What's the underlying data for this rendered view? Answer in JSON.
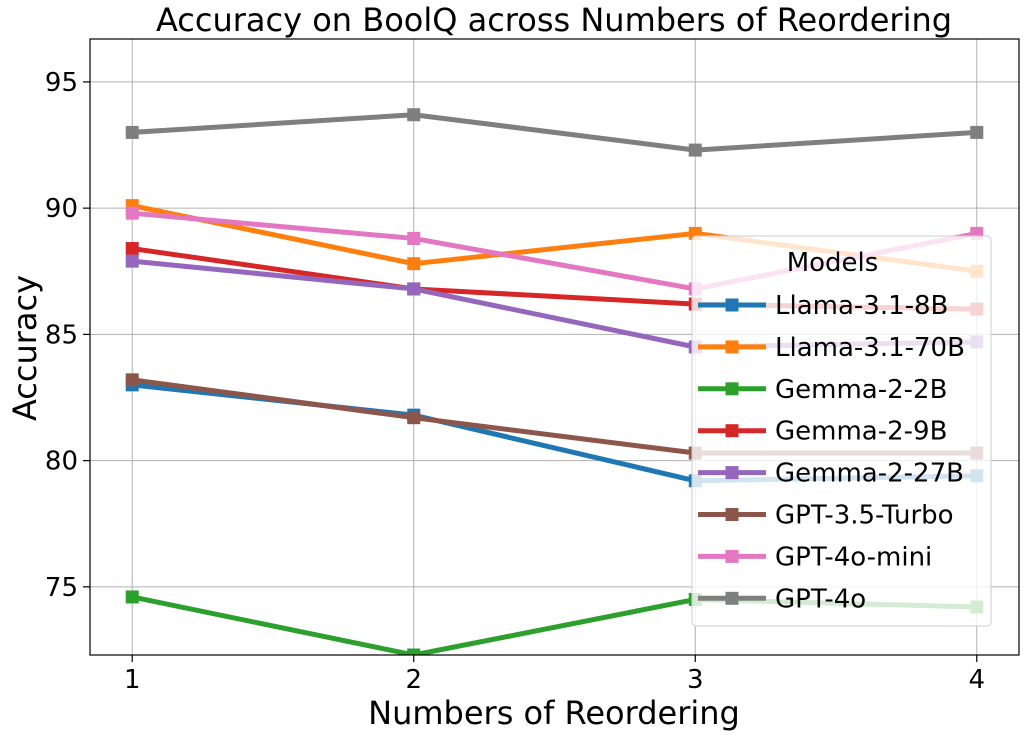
{
  "chart_data": {
    "type": "line",
    "title": "Accuracy on BoolQ across Numbers of Reordering",
    "xlabel": "Numbers of Reordering",
    "ylabel": "Accuracy",
    "x": [
      1,
      2,
      3,
      4
    ],
    "xticks": [
      "1",
      "2",
      "3",
      "4"
    ],
    "yticks": [
      "75",
      "80",
      "85",
      "90",
      "95"
    ],
    "ylim": [
      72.3,
      96.7
    ],
    "grid": true,
    "legend": {
      "title": "Models",
      "placement": "center-right"
    },
    "series": [
      {
        "name": "Llama-3.1-8B",
        "color": "#1f77b4",
        "values": [
          83.0,
          81.8,
          79.2,
          79.4
        ]
      },
      {
        "name": "Llama-3.1-70B",
        "color": "#ff7f0e",
        "values": [
          90.1,
          87.8,
          89.0,
          87.5
        ]
      },
      {
        "name": "Gemma-2-2B",
        "color": "#2ca02c",
        "values": [
          74.6,
          72.3,
          74.5,
          74.2
        ]
      },
      {
        "name": "Gemma-2-9B",
        "color": "#d62728",
        "values": [
          88.4,
          86.8,
          86.2,
          86.0
        ]
      },
      {
        "name": "Gemma-2-27B",
        "color": "#9467bd",
        "values": [
          87.9,
          86.8,
          84.5,
          84.7
        ]
      },
      {
        "name": "GPT-3.5-Turbo",
        "color": "#8c564b",
        "values": [
          83.2,
          81.7,
          80.3,
          80.3
        ]
      },
      {
        "name": "GPT-4o-mini",
        "color": "#e377c2",
        "values": [
          89.8,
          88.8,
          86.8,
          89.0
        ]
      },
      {
        "name": "GPT-4o",
        "color": "#7f7f7f",
        "values": [
          93.0,
          93.7,
          92.3,
          93.0
        ]
      }
    ]
  }
}
